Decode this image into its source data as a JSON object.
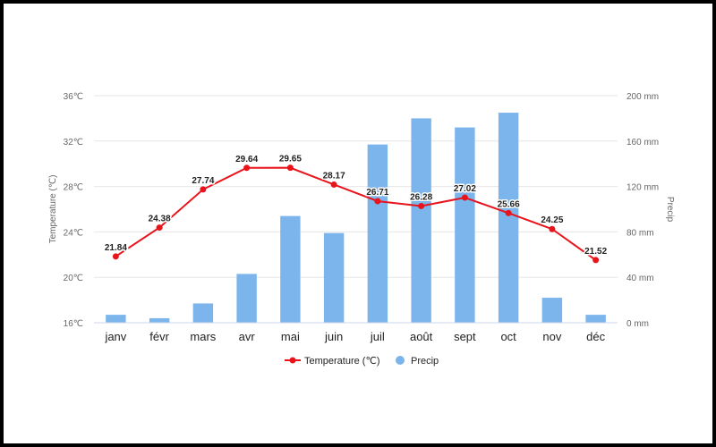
{
  "chart_data": {
    "type": "bar+line",
    "categories": [
      "janv",
      "févr",
      "mars",
      "avr",
      "mai",
      "juin",
      "juil",
      "août",
      "sept",
      "oct",
      "nov",
      "déc"
    ],
    "series": [
      {
        "name": "Temperature (℃)",
        "type": "line",
        "axis": "left",
        "color": "#e8141c",
        "values": [
          21.84,
          24.38,
          27.74,
          29.64,
          29.65,
          28.17,
          26.71,
          26.28,
          27.02,
          25.66,
          24.25,
          21.52
        ],
        "labels": [
          "21.84",
          "24.38",
          "27.74",
          "29.64",
          "29.65",
          "28.17",
          "26.71",
          "26.28",
          "27.02",
          "25.66",
          "24.25",
          "21.52"
        ]
      },
      {
        "name": "Precip",
        "type": "bar",
        "axis": "right",
        "color": "#7cb5ec",
        "values": [
          7,
          4,
          17,
          43,
          94,
          79,
          157,
          180,
          172,
          185,
          22,
          7
        ]
      }
    ],
    "left_axis": {
      "title": "Temperature (℃)",
      "min": 16,
      "max": 36,
      "ticks": [
        16,
        20,
        24,
        28,
        32,
        36
      ],
      "tick_labels": [
        "16℃",
        "20℃",
        "24℃",
        "28℃",
        "32℃",
        "36℃"
      ]
    },
    "right_axis": {
      "title": "Precip",
      "min": 0,
      "max": 200,
      "ticks": [
        0,
        40,
        80,
        120,
        160,
        200
      ],
      "tick_labels": [
        "0 mm",
        "40 mm",
        "80 mm",
        "120 mm",
        "160 mm",
        "200 mm"
      ]
    },
    "grid": true,
    "legend_position": "bottom-center"
  }
}
